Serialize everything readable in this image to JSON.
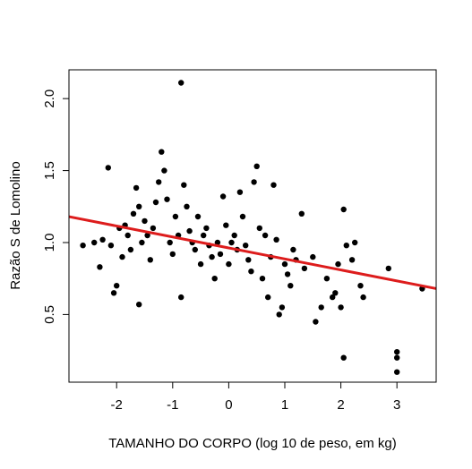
{
  "chart_data": {
    "type": "scatter",
    "xlabel": "TAMANHO DO CORPO (log 10 de peso, em kg)",
    "ylabel": "Razão S de Lomolino",
    "xlim": [
      -2.85,
      3.7
    ],
    "ylim": [
      0.03,
      2.2
    ],
    "x_ticks": [
      -2,
      -1,
      0,
      1,
      2,
      3
    ],
    "y_ticks": [
      0.5,
      1.0,
      1.5,
      2.0
    ],
    "x_tick_labels": [
      "-2",
      "-1",
      "0",
      "1",
      "2",
      "3"
    ],
    "y_tick_labels": [
      "0.5",
      "1.0",
      "1.5",
      "2.0"
    ],
    "grid": false,
    "legend": "none",
    "point_color": "#000000",
    "trend_line": {
      "color": "#dd1c1c",
      "x": [
        -2.85,
        3.7
      ],
      "y": [
        1.18,
        0.68
      ]
    },
    "points": [
      [
        -2.6,
        0.98
      ],
      [
        -2.4,
        1.0
      ],
      [
        -2.3,
        0.83
      ],
      [
        -2.25,
        1.02
      ],
      [
        -2.15,
        1.52
      ],
      [
        -2.1,
        0.98
      ],
      [
        -2.05,
        0.65
      ],
      [
        -2.0,
        0.7
      ],
      [
        -1.95,
        1.1
      ],
      [
        -1.9,
        0.9
      ],
      [
        -1.85,
        1.12
      ],
      [
        -1.8,
        1.05
      ],
      [
        -1.75,
        0.95
      ],
      [
        -1.7,
        1.2
      ],
      [
        -1.65,
        1.38
      ],
      [
        -1.6,
        1.25
      ],
      [
        -1.6,
        0.57
      ],
      [
        -1.55,
        1.0
      ],
      [
        -1.5,
        1.15
      ],
      [
        -1.45,
        1.05
      ],
      [
        -1.4,
        0.88
      ],
      [
        -1.35,
        1.1
      ],
      [
        -1.3,
        1.28
      ],
      [
        -1.25,
        1.42
      ],
      [
        -1.2,
        1.63
      ],
      [
        -1.15,
        1.5
      ],
      [
        -1.1,
        1.3
      ],
      [
        -1.05,
        1.0
      ],
      [
        -1.0,
        0.92
      ],
      [
        -0.95,
        1.18
      ],
      [
        -0.9,
        1.05
      ],
      [
        -0.85,
        2.11
      ],
      [
        -0.85,
        0.62
      ],
      [
        -0.8,
        1.4
      ],
      [
        -0.75,
        1.25
      ],
      [
        -0.7,
        1.08
      ],
      [
        -0.65,
        1.0
      ],
      [
        -0.6,
        0.95
      ],
      [
        -0.55,
        1.18
      ],
      [
        -0.5,
        0.85
      ],
      [
        -0.45,
        1.05
      ],
      [
        -0.4,
        1.1
      ],
      [
        -0.35,
        0.98
      ],
      [
        -0.3,
        0.9
      ],
      [
        -0.25,
        0.75
      ],
      [
        -0.2,
        1.0
      ],
      [
        -0.15,
        0.92
      ],
      [
        -0.1,
        1.32
      ],
      [
        -0.05,
        1.12
      ],
      [
        0.0,
        0.85
      ],
      [
        0.05,
        1.0
      ],
      [
        0.1,
        1.05
      ],
      [
        0.15,
        0.95
      ],
      [
        0.2,
        1.35
      ],
      [
        0.25,
        1.18
      ],
      [
        0.3,
        0.98
      ],
      [
        0.35,
        0.88
      ],
      [
        0.4,
        0.8
      ],
      [
        0.45,
        1.42
      ],
      [
        0.5,
        1.53
      ],
      [
        0.55,
        1.1
      ],
      [
        0.6,
        0.75
      ],
      [
        0.65,
        1.05
      ],
      [
        0.7,
        0.62
      ],
      [
        0.75,
        0.9
      ],
      [
        0.8,
        1.4
      ],
      [
        0.85,
        1.02
      ],
      [
        0.9,
        0.5
      ],
      [
        0.95,
        0.55
      ],
      [
        1.0,
        0.85
      ],
      [
        1.05,
        0.78
      ],
      [
        1.1,
        0.7
      ],
      [
        1.15,
        0.95
      ],
      [
        1.2,
        0.88
      ],
      [
        1.3,
        1.2
      ],
      [
        1.35,
        0.82
      ],
      [
        1.5,
        0.9
      ],
      [
        1.55,
        0.45
      ],
      [
        1.65,
        0.55
      ],
      [
        1.75,
        0.75
      ],
      [
        1.85,
        0.62
      ],
      [
        1.9,
        0.65
      ],
      [
        1.95,
        0.85
      ],
      [
        2.0,
        0.55
      ],
      [
        2.05,
        1.23
      ],
      [
        2.1,
        0.98
      ],
      [
        2.2,
        0.88
      ],
      [
        2.25,
        1.0
      ],
      [
        2.35,
        0.7
      ],
      [
        2.4,
        0.62
      ],
      [
        2.05,
        0.2
      ],
      [
        2.85,
        0.82
      ],
      [
        3.0,
        0.24
      ],
      [
        3.0,
        0.2
      ],
      [
        3.0,
        0.1
      ],
      [
        3.45,
        0.68
      ]
    ]
  }
}
